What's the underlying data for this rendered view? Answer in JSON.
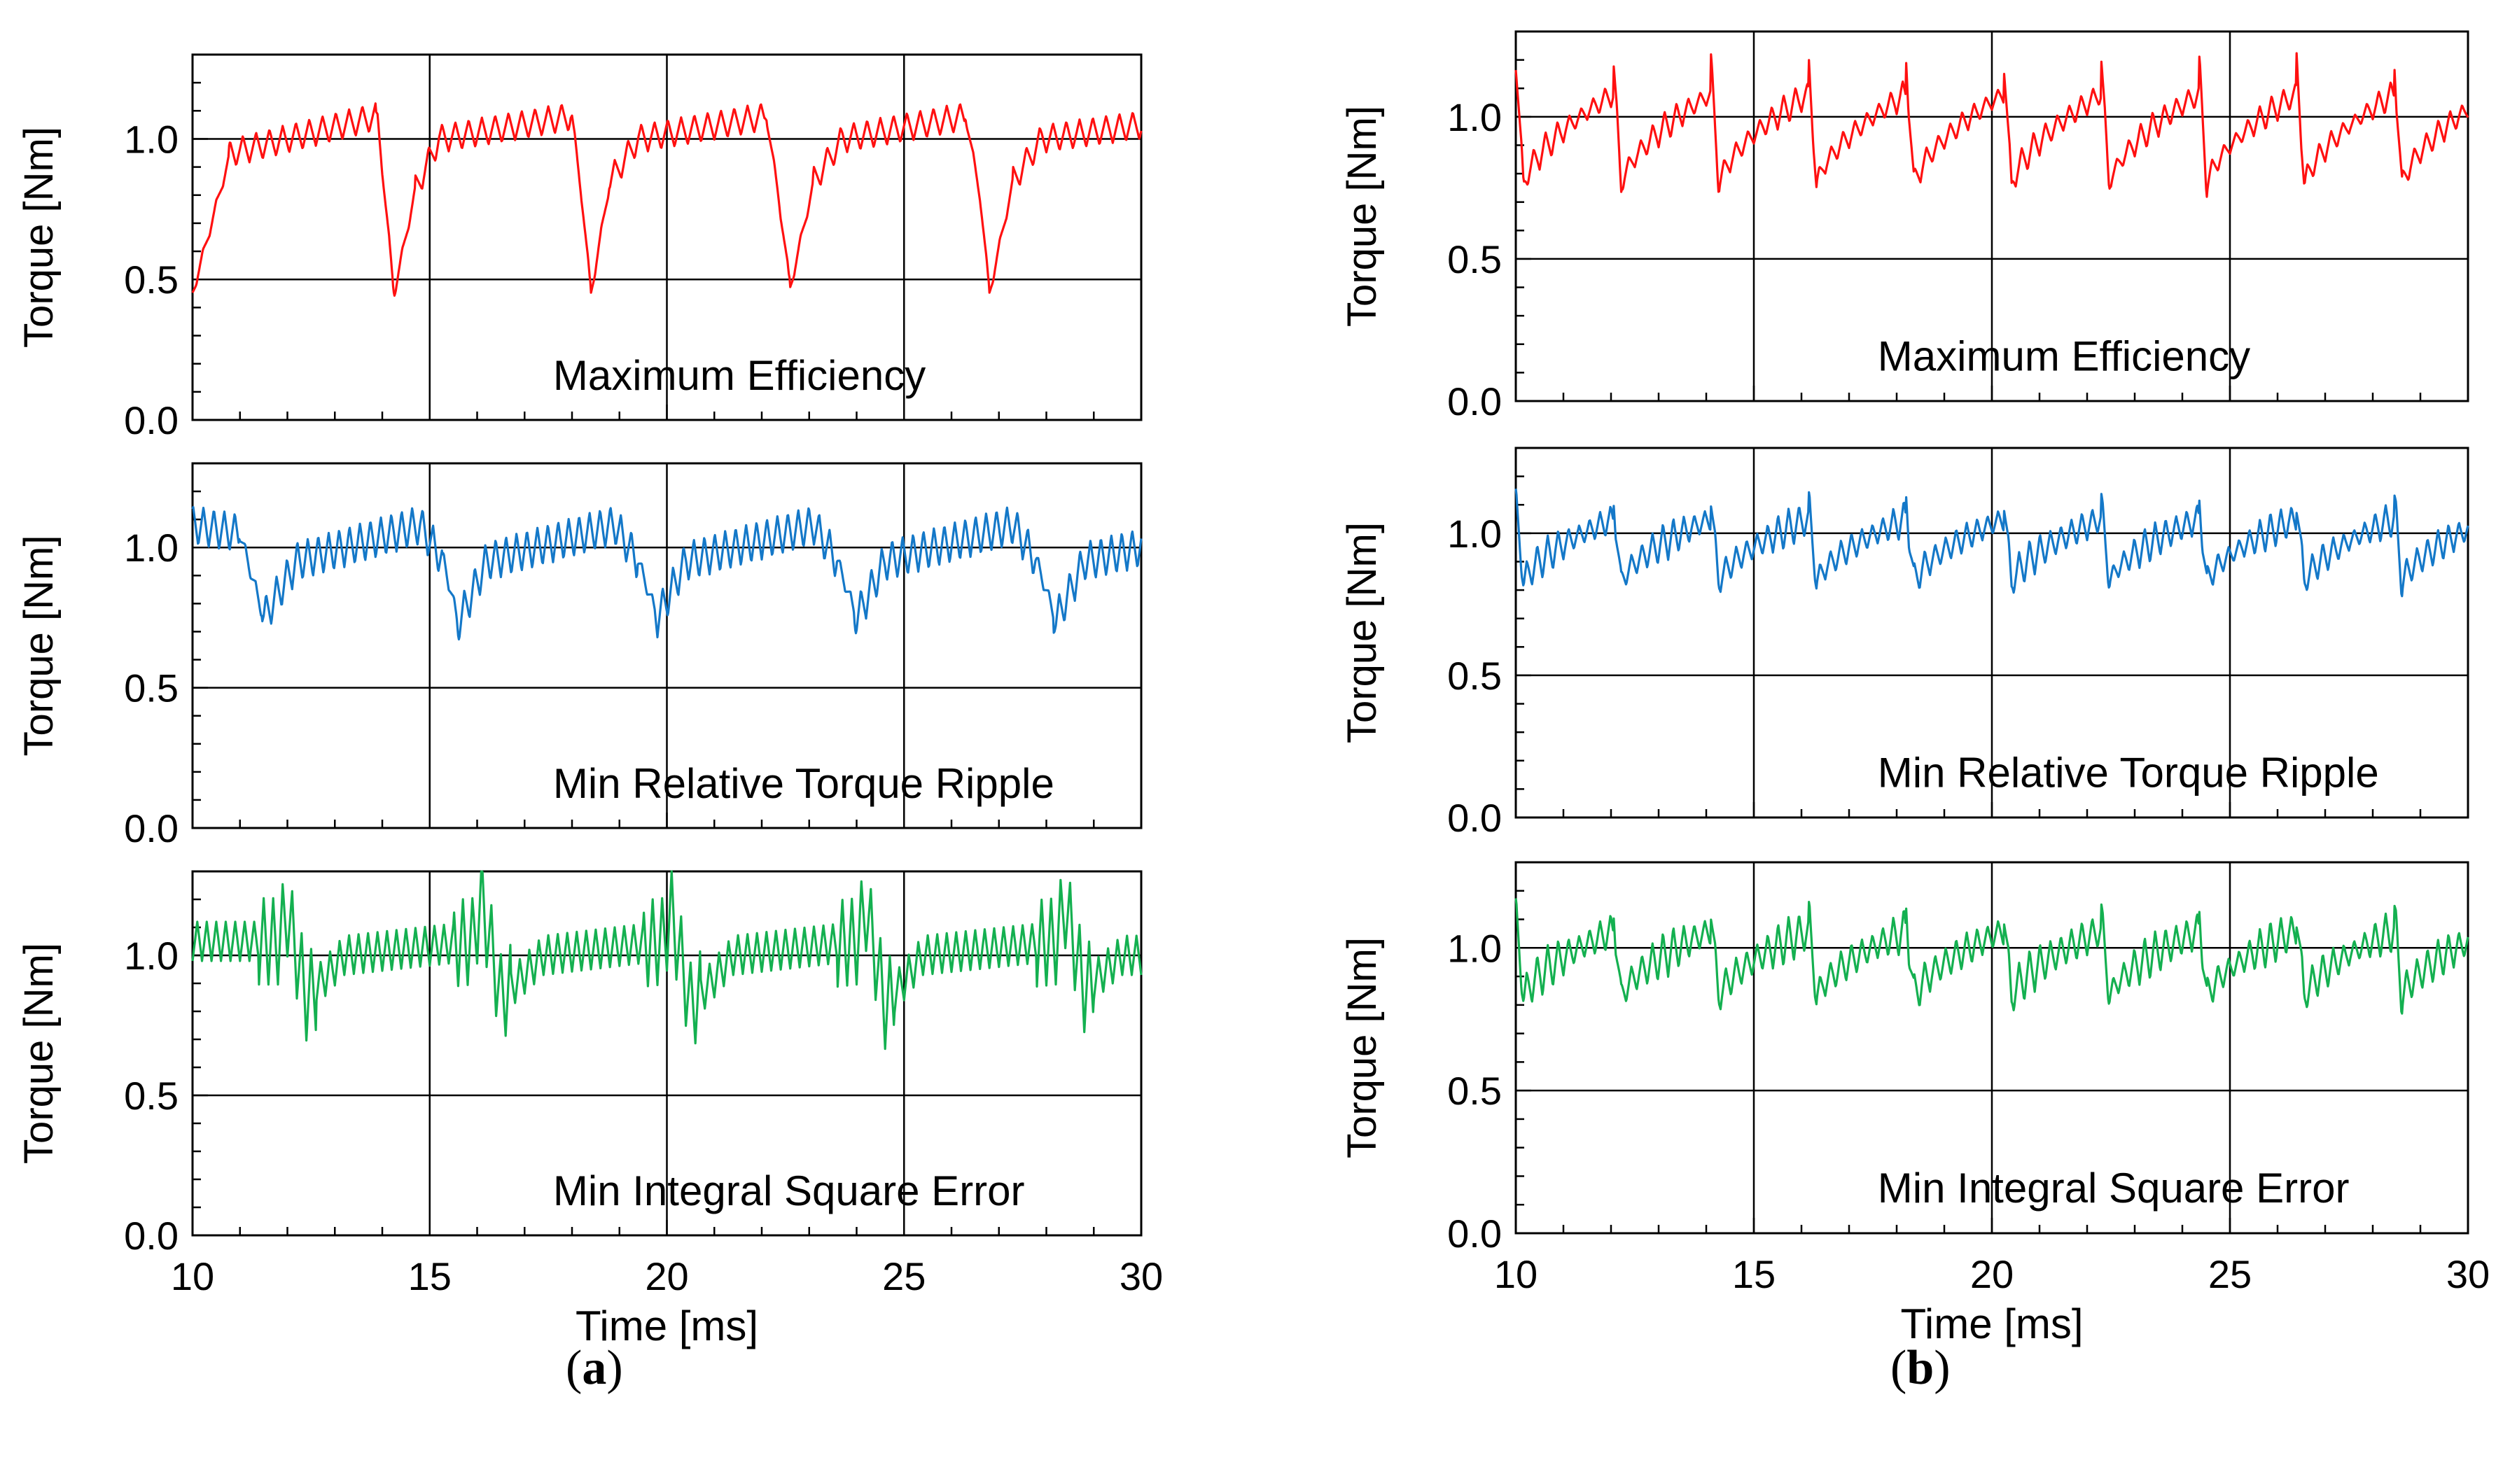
{
  "panel_labels": {
    "a": {
      "open": "(",
      "letter": "a",
      "close": ")"
    },
    "b": {
      "open": "(",
      "letter": "b",
      "close": ")"
    }
  },
  "colors": {
    "maximum_efficiency": "#ff1010",
    "min_relative_torque_ripple": "#1478c8",
    "min_integral_square_error": "#14b050",
    "axes": "#000000",
    "grid": "#000000"
  },
  "chart_data": [
    {
      "panel": "a",
      "row": 0,
      "type": "line",
      "title": "Maximum Efficiency",
      "xlabel": "",
      "ylabel": "Torque [Nm]",
      "xlim": [
        10,
        30
      ],
      "ylim": [
        0,
        1.3
      ],
      "xticks": [],
      "yticks": [
        "0.0",
        "0.5",
        "1.0"
      ],
      "grid": true,
      "color_key": "maximum_efficiency",
      "series": [
        {
          "name": "Maximum Efficiency",
          "profile": "dip",
          "x": [
            10.0,
            10.8,
            13.9,
            14.05,
            14.25,
            14.7,
            15.2,
            18.0,
            18.2,
            18.4,
            18.8,
            19.4,
            22.1,
            22.35,
            22.6,
            23.1,
            23.7,
            26.3,
            26.6,
            26.8,
            27.3,
            27.9,
            30.0
          ],
          "y": [
            0.45,
            0.95,
            1.08,
            0.8,
            0.45,
            0.82,
            1.0,
            1.08,
            0.8,
            0.45,
            0.85,
            1.0,
            1.08,
            0.8,
            0.47,
            0.85,
            1.0,
            1.08,
            0.8,
            0.45,
            0.85,
            1.0,
            1.05
          ],
          "ripple_amplitude": 0.05,
          "ripple_period_ms": 0.28
        }
      ]
    },
    {
      "panel": "a",
      "row": 1,
      "type": "line",
      "title": "Min Relative Torque Ripple",
      "xlabel": "",
      "ylabel": "Torque [Nm]",
      "xlim": [
        10,
        30
      ],
      "ylim": [
        0,
        1.3
      ],
      "xticks": [],
      "yticks": [
        "0.0",
        "0.5",
        "1.0"
      ],
      "grid": true,
      "color_key": "min_relative_torque_ripple",
      "series": [
        {
          "name": "Min Relative Torque Ripple",
          "profile": "dip",
          "x": [
            10.0,
            11.0,
            11.5,
            12.2,
            14.8,
            15.3,
            15.6,
            16.2,
            18.9,
            19.4,
            19.8,
            20.4,
            23.1,
            23.6,
            24.0,
            24.6,
            27.3,
            27.8,
            28.2,
            28.8,
            30.0
          ],
          "y": [
            1.08,
            1.05,
            0.75,
            0.95,
            1.08,
            0.95,
            0.73,
            0.95,
            1.08,
            0.95,
            0.75,
            0.95,
            1.08,
            0.95,
            0.75,
            0.95,
            1.08,
            0.95,
            0.74,
            0.95,
            1.0
          ],
          "ripple_amplitude": 0.07,
          "ripple_period_ms": 0.22
        }
      ]
    },
    {
      "panel": "a",
      "row": 2,
      "type": "line",
      "title": "Min Integral Square Error",
      "xlabel": "Time [ms]",
      "ylabel": "Torque [Nm]",
      "xlim": [
        10,
        30
      ],
      "ylim": [
        0,
        1.3
      ],
      "xticks": [
        "10",
        "15",
        "20",
        "25",
        "30"
      ],
      "yticks": [
        "0.0",
        "0.5",
        "1.0"
      ],
      "grid": true,
      "color_key": "min_integral_square_error",
      "series": [
        {
          "name": "Min Integral Square Error",
          "profile": "burst",
          "x": [
            10.0,
            11.8,
            12.0,
            12.4,
            13.2,
            15.9,
            16.1,
            16.5,
            17.4,
            19.9,
            20.1,
            20.5,
            21.4,
            24.0,
            24.2,
            24.6,
            25.4,
            28.2,
            28.4,
            28.8,
            29.6,
            30.0
          ],
          "y": [
            1.05,
            1.05,
            1.15,
            0.85,
            1.0,
            1.05,
            1.2,
            0.85,
            1.0,
            1.05,
            1.15,
            0.82,
            1.0,
            1.05,
            1.17,
            0.82,
            1.0,
            1.05,
            1.18,
            0.88,
            1.0,
            1.0
          ],
          "ripple_amplitude": 0.07,
          "ripple_period_ms": 0.2
        }
      ]
    },
    {
      "panel": "b",
      "row": 0,
      "type": "line",
      "title": "Maximum Efficiency",
      "xlabel": "",
      "ylabel": "Torque [Nm]",
      "xlim": [
        10,
        30
      ],
      "ylim": [
        0,
        1.3
      ],
      "xticks": [],
      "yticks": [
        "0.0",
        "0.5",
        "1.0"
      ],
      "grid": true,
      "color_key": "maximum_efficiency",
      "series": [
        {
          "name": "Maximum Efficiency",
          "profile": "sawtooth",
          "x": [
            10.0,
            30.0
          ],
          "y": [
            0.98,
            0.98
          ],
          "sawtooth_period_ms": 2.05,
          "sawtooth_low": 0.75,
          "sawtooth_high": 1.08,
          "spike_peak": 1.2,
          "ripple_amplitude": 0.04,
          "ripple_period_ms": 0.25
        }
      ]
    },
    {
      "panel": "b",
      "row": 1,
      "type": "line",
      "title": "Min Relative Torque Ripple",
      "xlabel": "",
      "ylabel": "Torque [Nm]",
      "xlim": [
        10,
        30
      ],
      "ylim": [
        0,
        1.3
      ],
      "xticks": [],
      "yticks": [
        "0.0",
        "0.5",
        "1.0"
      ],
      "grid": true,
      "color_key": "min_relative_torque_ripple",
      "series": [
        {
          "name": "Min Relative Torque Ripple",
          "profile": "sawtooth",
          "x": [
            10.0,
            30.0
          ],
          "y": [
            0.95,
            0.95
          ],
          "sawtooth_period_ms": 2.05,
          "sawtooth_low": 0.82,
          "sawtooth_high": 1.05,
          "spike_peak": 1.12,
          "ripple_amplitude": 0.05,
          "ripple_period_ms": 0.22
        }
      ]
    },
    {
      "panel": "b",
      "row": 2,
      "type": "line",
      "title": "Min Integral Square Error",
      "xlabel": "Time [ms]",
      "ylabel": "Torque [Nm]",
      "xlim": [
        10,
        30
      ],
      "ylim": [
        0,
        1.3
      ],
      "xticks": [
        "10",
        "15",
        "20",
        "25",
        "30"
      ],
      "yticks": [
        "0.0",
        "0.5",
        "1.0"
      ],
      "grid": true,
      "color_key": "min_integral_square_error",
      "series": [
        {
          "name": "Min Integral Square Error",
          "profile": "sawtooth",
          "x": [
            10.0,
            30.0
          ],
          "y": [
            0.97,
            0.97
          ],
          "sawtooth_period_ms": 2.05,
          "sawtooth_low": 0.82,
          "sawtooth_high": 1.06,
          "spike_peak": 1.13,
          "ripple_amplitude": 0.06,
          "ripple_period_ms": 0.22
        }
      ]
    }
  ]
}
